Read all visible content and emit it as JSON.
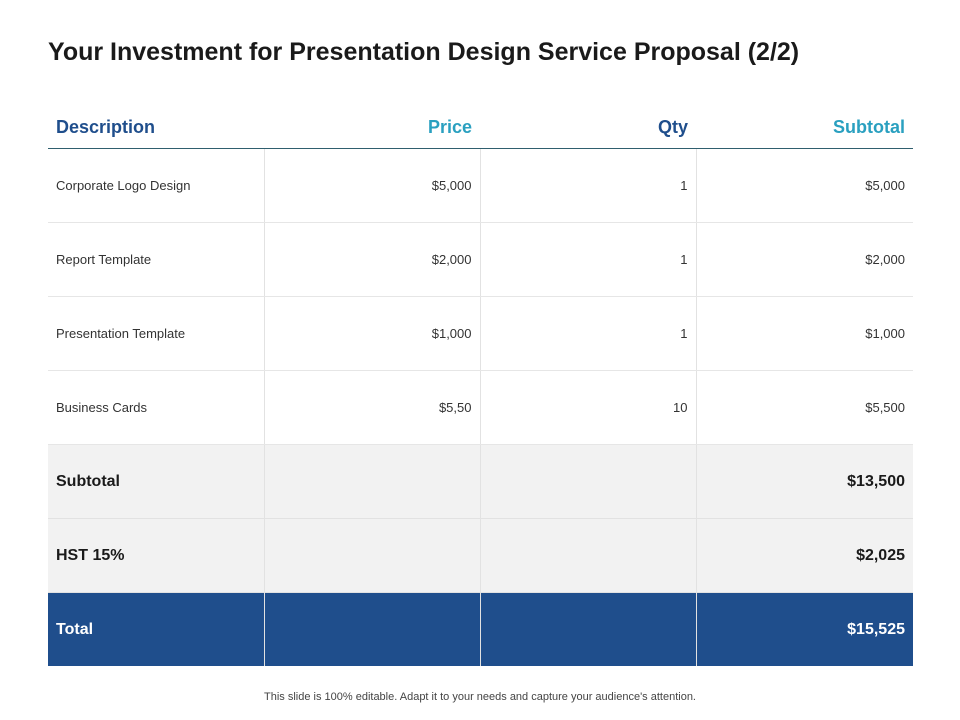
{
  "title": "Your Investment for Presentation Design Service Proposal (2/2)",
  "table": {
    "headers": {
      "description": "Description",
      "price": "Price",
      "qty": "Qty",
      "subtotal": "Subtotal"
    },
    "rows": [
      {
        "description": "Corporate Logo Design",
        "price": "$5,000",
        "qty": "1",
        "subtotal": "$5,000"
      },
      {
        "description": "Report Template",
        "price": "$2,000",
        "qty": "1",
        "subtotal": "$2,000"
      },
      {
        "description": "Presentation Template",
        "price": "$1,000",
        "qty": "1",
        "subtotal": "$1,000"
      },
      {
        "description": "Business Cards",
        "price": "$5,50",
        "qty": "10",
        "subtotal": "$5,500"
      }
    ],
    "subtotal": {
      "label": "Subtotal",
      "value": "$13,500"
    },
    "tax": {
      "label": "HST 15%",
      "value": "$2,025"
    },
    "total": {
      "label": "Total",
      "value": "$15,525"
    }
  },
  "footer": "This slide is 100% editable. Adapt it to your needs and capture your audience's attention.",
  "colors": {
    "header_blue": "#1f4e8c",
    "header_teal": "#2aa0c0",
    "total_row_bg": "#1f4e8c",
    "summary_row_bg": "#f2f2f2"
  }
}
